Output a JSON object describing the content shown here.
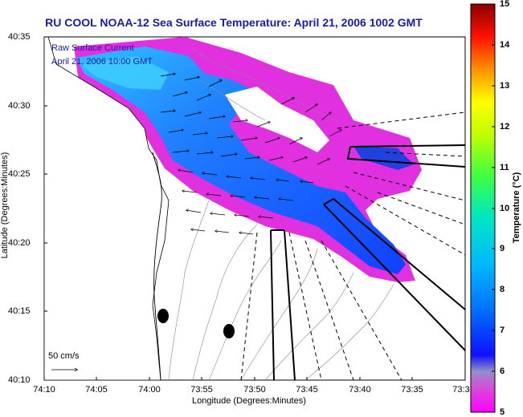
{
  "title": "RU COOL  NOAA-12  Sea Surface Temperature:  April 21, 2006 1002 GMT",
  "annotation": {
    "line1": "Raw Surface Current",
    "line2": "April 21, 2006 10:00 GMT",
    "scale_label": "50 cm/s"
  },
  "axes": {
    "xlabel": "Longitude (Degrees:Minutes)",
    "ylabel": "Latitude (Degrees:Minutes)",
    "xticks": [
      "74:10",
      "74:05",
      "74:00",
      "73:55",
      "73:50",
      "73:45",
      "73:40",
      "73:35",
      "73:3"
    ],
    "yticks": [
      "40:35",
      "40:30",
      "40:25",
      "40:20",
      "40:15",
      "40:10"
    ]
  },
  "colorbar": {
    "label": "Temperature (°C)",
    "ticks": [
      "15",
      "14",
      "13",
      "12",
      "11",
      "10",
      "9",
      "8",
      "7",
      "6",
      "5"
    ],
    "range": [
      5,
      15
    ]
  },
  "colors": {
    "title": "#1a1aa8",
    "land": "#ffffff",
    "sst_cold": "#ff00ff",
    "sst_warm": "#8b0000"
  }
}
